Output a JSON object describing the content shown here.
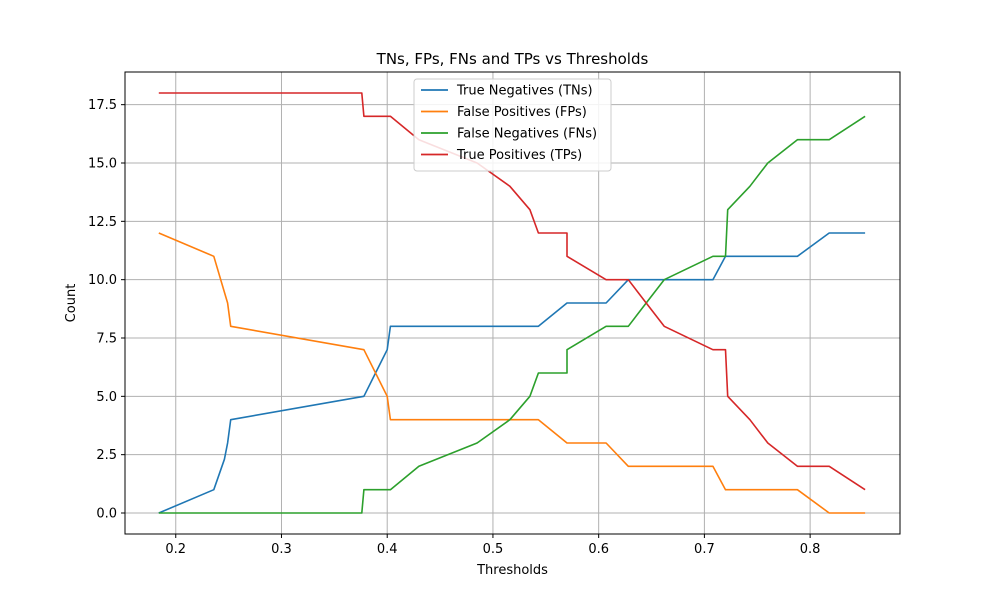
{
  "chart_data": {
    "type": "line",
    "title": "TNs, FPs, FNs and TPs vs Thresholds",
    "xlabel": "Thresholds",
    "ylabel": "Count",
    "xlim": [
      0.152,
      0.885
    ],
    "ylim": [
      -0.9,
      18.9
    ],
    "xticks": [
      0.2,
      0.3,
      0.4,
      0.5,
      0.6,
      0.7,
      0.8
    ],
    "xtick_labels": [
      "0.2",
      "0.3",
      "0.4",
      "0.5",
      "0.6",
      "0.7",
      "0.8"
    ],
    "yticks": [
      0,
      2.5,
      5,
      7.5,
      10,
      12.5,
      15,
      17.5
    ],
    "ytick_labels": [
      "0.0",
      "2.5",
      "5.0",
      "7.5",
      "10.0",
      "12.5",
      "15.0",
      "17.5"
    ],
    "grid": true,
    "legend_position": "top-center",
    "series": [
      {
        "name": "True Negatives (TNs)",
        "color": "#1f77b4",
        "points": [
          [
            0.184,
            0
          ],
          [
            0.236,
            1
          ],
          [
            0.246,
            2.3
          ],
          [
            0.249,
            3
          ],
          [
            0.252,
            4
          ],
          [
            0.378,
            5
          ],
          [
            0.4,
            7
          ],
          [
            0.403,
            8
          ],
          [
            0.543,
            8
          ],
          [
            0.57,
            9
          ],
          [
            0.607,
            9
          ],
          [
            0.628,
            10
          ],
          [
            0.708,
            10
          ],
          [
            0.72,
            11
          ],
          [
            0.788,
            11
          ],
          [
            0.818,
            12
          ],
          [
            0.852,
            12
          ]
        ]
      },
      {
        "name": "False Positives (FPs)",
        "color": "#ff7f0e",
        "points": [
          [
            0.184,
            12
          ],
          [
            0.236,
            11
          ],
          [
            0.249,
            9
          ],
          [
            0.252,
            8
          ],
          [
            0.378,
            7
          ],
          [
            0.4,
            5
          ],
          [
            0.403,
            4
          ],
          [
            0.543,
            4
          ],
          [
            0.57,
            3
          ],
          [
            0.607,
            3
          ],
          [
            0.628,
            2
          ],
          [
            0.708,
            2
          ],
          [
            0.72,
            1
          ],
          [
            0.788,
            1
          ],
          [
            0.818,
            0
          ],
          [
            0.852,
            0
          ]
        ]
      },
      {
        "name": "False Negatives (FNs)",
        "color": "#2ca02c",
        "points": [
          [
            0.184,
            0
          ],
          [
            0.376,
            0
          ],
          [
            0.378,
            1
          ],
          [
            0.403,
            1
          ],
          [
            0.43,
            2
          ],
          [
            0.485,
            3
          ],
          [
            0.516,
            4
          ],
          [
            0.535,
            5
          ],
          [
            0.543,
            6
          ],
          [
            0.57,
            6
          ],
          [
            0.57,
            7
          ],
          [
            0.607,
            8
          ],
          [
            0.628,
            8
          ],
          [
            0.645,
            9
          ],
          [
            0.662,
            10
          ],
          [
            0.708,
            11
          ],
          [
            0.72,
            11
          ],
          [
            0.722,
            13
          ],
          [
            0.743,
            14
          ],
          [
            0.76,
            15
          ],
          [
            0.788,
            16
          ],
          [
            0.818,
            16
          ],
          [
            0.852,
            17
          ]
        ]
      },
      {
        "name": "True Positives (TPs)",
        "color": "#d62728",
        "points": [
          [
            0.184,
            18
          ],
          [
            0.376,
            18
          ],
          [
            0.378,
            17
          ],
          [
            0.403,
            17
          ],
          [
            0.43,
            16
          ],
          [
            0.485,
            15
          ],
          [
            0.516,
            14
          ],
          [
            0.535,
            13
          ],
          [
            0.543,
            12
          ],
          [
            0.57,
            12
          ],
          [
            0.57,
            11
          ],
          [
            0.607,
            10
          ],
          [
            0.628,
            10
          ],
          [
            0.645,
            9
          ],
          [
            0.662,
            8
          ],
          [
            0.708,
            7
          ],
          [
            0.72,
            7
          ],
          [
            0.722,
            5
          ],
          [
            0.743,
            4
          ],
          [
            0.76,
            3
          ],
          [
            0.788,
            2
          ],
          [
            0.818,
            2
          ],
          [
            0.852,
            1
          ]
        ]
      }
    ]
  }
}
